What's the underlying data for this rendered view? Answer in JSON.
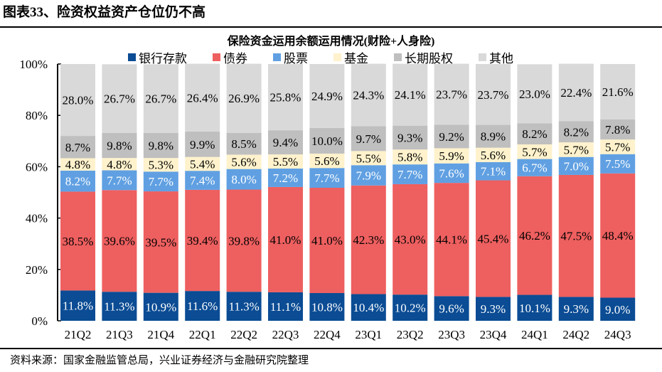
{
  "figure_title": "图表33、险资权益资产仓位仍不高",
  "source": "资料来源：国家金融监管总局，兴业证券经济与金融研究院整理",
  "chart_data": {
    "type": "bar",
    "stacked": true,
    "title": "保险资金运用余额运用情况(财险+人身险)",
    "xlabel": "",
    "ylabel": "",
    "ylim": [
      0,
      100
    ],
    "yticks": [
      "0%",
      "20%",
      "40%",
      "60%",
      "80%",
      "100%"
    ],
    "legend_position": "top",
    "categories": [
      "21Q2",
      "21Q3",
      "21Q4",
      "22Q1",
      "22Q2",
      "22Q3",
      "22Q4",
      "23Q1",
      "23Q2",
      "23Q3",
      "23Q4",
      "24Q1",
      "24Q2",
      "24Q3"
    ],
    "series": [
      {
        "name": "银行存款",
        "color": "#0B4C94",
        "label_color": "#ffffff",
        "values": [
          11.8,
          11.3,
          10.9,
          11.6,
          11.3,
          11.1,
          10.8,
          10.4,
          10.2,
          9.6,
          9.3,
          10.1,
          9.3,
          9.0
        ]
      },
      {
        "name": "债券",
        "color": "#EE5F5F",
        "label_color": "#000000",
        "values": [
          38.5,
          39.6,
          39.5,
          39.4,
          39.8,
          41.0,
          41.0,
          42.3,
          43.0,
          44.1,
          45.4,
          46.2,
          47.5,
          48.4
        ]
      },
      {
        "name": "股票",
        "color": "#60A0E2",
        "label_color": "#ffffff",
        "values": [
          8.2,
          7.7,
          7.7,
          7.4,
          8.0,
          7.2,
          7.7,
          7.9,
          7.7,
          7.6,
          7.1,
          6.7,
          7.0,
          7.5
        ]
      },
      {
        "name": "基金",
        "color": "#FFF2CC",
        "label_color": "#000000",
        "values": [
          4.8,
          4.8,
          5.3,
          5.4,
          5.6,
          5.5,
          5.6,
          5.5,
          5.8,
          5.9,
          5.6,
          5.7,
          5.7,
          5.7
        ]
      },
      {
        "name": "长期股权",
        "color": "#BFBFBF",
        "label_color": "#000000",
        "values": [
          8.7,
          9.8,
          9.8,
          9.9,
          8.5,
          9.4,
          10.0,
          9.7,
          9.3,
          9.2,
          8.9,
          8.2,
          8.2,
          7.8
        ]
      },
      {
        "name": "其他",
        "color": "#D9D9D9",
        "label_color": "#000000",
        "values": [
          28.0,
          26.7,
          26.7,
          26.4,
          26.9,
          25.8,
          24.9,
          24.3,
          24.1,
          23.7,
          23.7,
          23.0,
          22.4,
          21.6
        ]
      }
    ]
  }
}
